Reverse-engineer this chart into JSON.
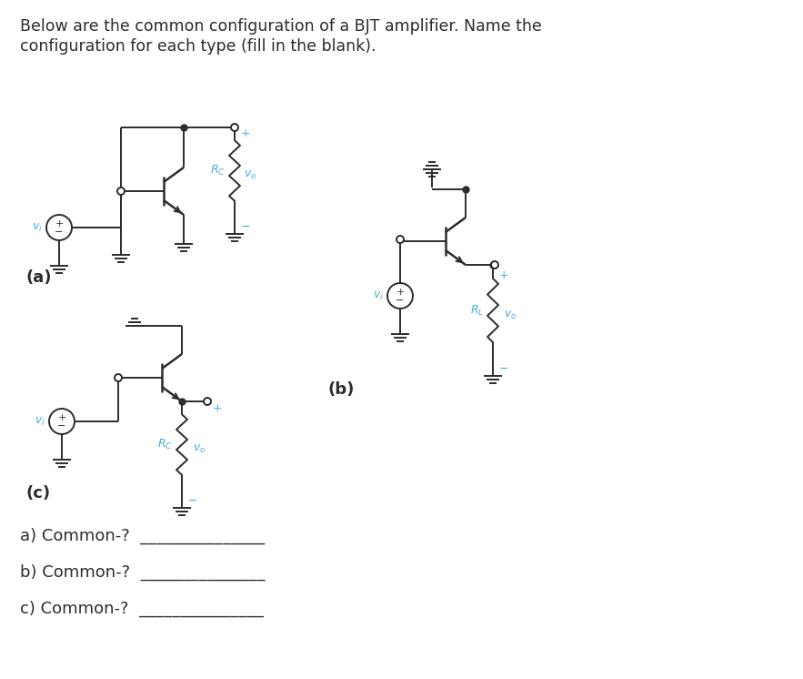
{
  "title_line1": "Below are the common configuration of a BJT amplifier. Name the",
  "title_line2": "configuration for each type (fill in the blank).",
  "title_color": "#2c2c2c",
  "title_fontsize": 12.5,
  "background_color": "#ffffff",
  "circuit_color": "#2c2c2c",
  "label_color": "#4AABDB",
  "fig_width": 8.83,
  "fig_height": 7.46,
  "questions": [
    "a) Common-?  _______________",
    "b) Common-?  _______________",
    "c) Common-?  _______________"
  ]
}
